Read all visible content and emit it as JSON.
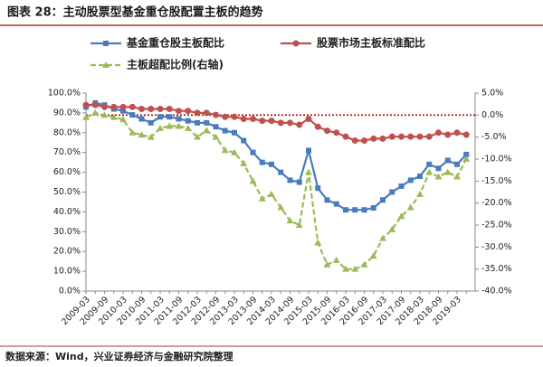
{
  "chart_data": {
    "type": "line",
    "title": "图表 28：主动股票型基金重仓股配置主板的趋势",
    "source": "数据来源：Wind，兴业证券经济与金融研究院整理",
    "categories": [
      "2009-03",
      null,
      "2009-09",
      null,
      "2010-03",
      null,
      "2010-09",
      null,
      "2011-03",
      null,
      "2011-09",
      null,
      "2012-03",
      null,
      "2012-09",
      null,
      "2013-03",
      null,
      "2013-09",
      null,
      "2014-03",
      null,
      "2014-09",
      null,
      "2015-03",
      null,
      "2015-09",
      null,
      "2016-03",
      null,
      "2016-09",
      null,
      "2017-03",
      null,
      "2017-09",
      null,
      "2018-03",
      null,
      "2018-09",
      null,
      "2019-03",
      null
    ],
    "series": [
      {
        "name": "基金重仓股主板配比",
        "color": "#4a7bbf",
        "marker": "square",
        "values": [
          93,
          95,
          94,
          92,
          91,
          89,
          87,
          85,
          88,
          88,
          87,
          86,
          85,
          85,
          83,
          81,
          80,
          76,
          70,
          65,
          64,
          60,
          56,
          55,
          71,
          52,
          46,
          44,
          41,
          41,
          41,
          42,
          46,
          50,
          53,
          56,
          58,
          64,
          62,
          66,
          64,
          69
        ]
      },
      {
        "name": "股票市场主板标准配比",
        "color": "#c0504d",
        "marker": "circle",
        "values": [
          94,
          94,
          93,
          93,
          93,
          93,
          92,
          92,
          92,
          92,
          91,
          91,
          90,
          90,
          89,
          88,
          88,
          87,
          87,
          86,
          86,
          85,
          85,
          84,
          87,
          83,
          81,
          80,
          78,
          76,
          76,
          77,
          77,
          78,
          78,
          78,
          78,
          78,
          80,
          79,
          80,
          79
        ]
      },
      {
        "name": "主板超配比例(右轴)",
        "color": "#9bbb59",
        "marker": "triangle",
        "axis": "y2",
        "dashed": true,
        "values": [
          -0.5,
          0.5,
          0,
          -0.5,
          -1,
          -4,
          -4.5,
          -5,
          -3,
          -2.5,
          -2.5,
          -3,
          -5,
          -3.5,
          -5,
          -8,
          -8.5,
          -11,
          -15,
          -19,
          -18,
          -21,
          -24,
          -25,
          -13,
          -29,
          -34,
          -33,
          -35,
          -35,
          -34,
          -32,
          -28,
          -26,
          -23,
          -21,
          -18,
          -13,
          -14,
          -13,
          -14,
          -10
        ]
      }
    ],
    "ylim": [
      0,
      100
    ],
    "yticks": [
      {
        "value": 0,
        "label": "0.0%"
      },
      {
        "value": 10,
        "label": "10.0%"
      },
      {
        "value": 20,
        "label": "20.0%"
      },
      {
        "value": 30,
        "label": "30.0%"
      },
      {
        "value": 40,
        "label": "40.0%"
      },
      {
        "value": 50,
        "label": "50.0%"
      },
      {
        "value": 60,
        "label": "60.0%"
      },
      {
        "value": 70,
        "label": "70.0%"
      },
      {
        "value": 80,
        "label": "80.0%"
      },
      {
        "value": 90,
        "label": "90.0%"
      },
      {
        "value": 100,
        "label": "100.0%"
      }
    ],
    "y2lim": [
      -40,
      5
    ],
    "y2ticks": [
      {
        "value": -40,
        "label": "-40.0%"
      },
      {
        "value": -35,
        "label": "-35.0%"
      },
      {
        "value": -30,
        "label": "-30.0%"
      },
      {
        "value": -25,
        "label": "-25.0%"
      },
      {
        "value": -20,
        "label": "-20.0%"
      },
      {
        "value": -15,
        "label": "-15.0%"
      },
      {
        "value": -10,
        "label": "-10.0%"
      },
      {
        "value": -5,
        "label": "-5.0%"
      },
      {
        "value": 0,
        "label": "0.0%"
      },
      {
        "value": 5,
        "label": "5.0%"
      }
    ],
    "reference_line": {
      "axis": "y2",
      "value": 0,
      "color": "#c00000"
    },
    "grid": false
  }
}
